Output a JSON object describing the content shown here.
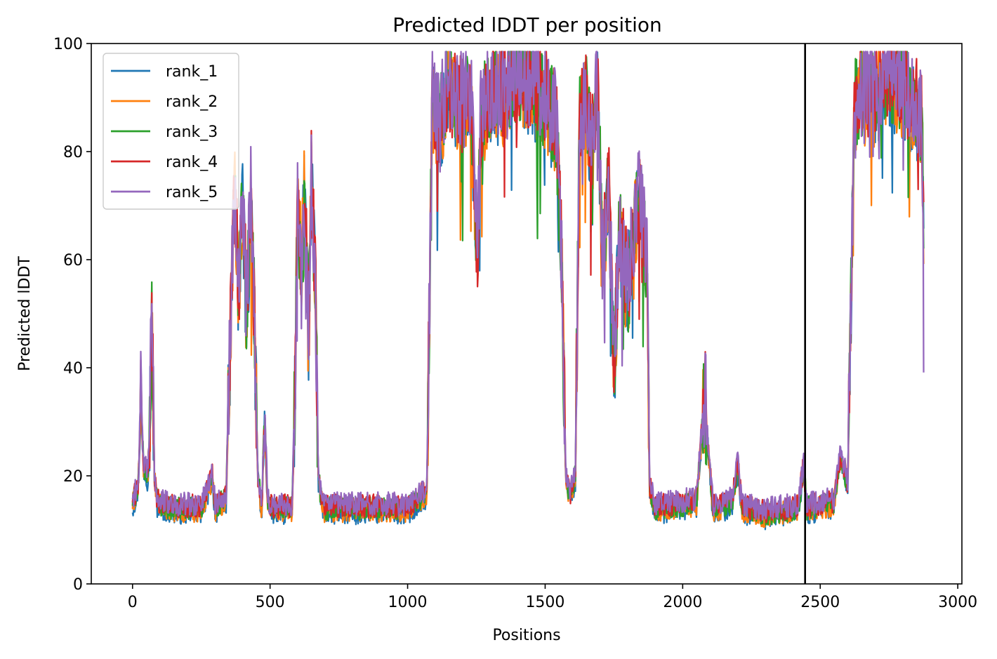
{
  "chart_data": {
    "type": "line",
    "title": "Predicted lDDT per position",
    "xlabel": "Positions",
    "ylabel": "Predicted lDDT",
    "xlim": [
      -150,
      3015
    ],
    "ylim": [
      0,
      100
    ],
    "xticks": [
      0,
      500,
      1000,
      1500,
      2000,
      2500,
      3000
    ],
    "yticks": [
      0,
      20,
      40,
      60,
      80,
      100
    ],
    "grid": false,
    "legend_position": "top-left",
    "vline": 2445,
    "series": [
      {
        "name": "rank_1",
        "color": "#1f77b4"
      },
      {
        "name": "rank_2",
        "color": "#ff7f0e"
      },
      {
        "name": "rank_3",
        "color": "#2ca02c"
      },
      {
        "name": "rank_4",
        "color": "#d62728"
      },
      {
        "name": "rank_5",
        "color": "#9467bd"
      }
    ],
    "base_profile": [
      [
        0,
        15
      ],
      [
        20,
        18
      ],
      [
        30,
        33
      ],
      [
        40,
        22
      ],
      [
        55,
        20
      ],
      [
        60,
        26
      ],
      [
        70,
        48
      ],
      [
        80,
        20
      ],
      [
        90,
        15
      ],
      [
        150,
        14
      ],
      [
        250,
        14
      ],
      [
        290,
        20
      ],
      [
        300,
        14
      ],
      [
        340,
        16
      ],
      [
        355,
        45
      ],
      [
        370,
        75
      ],
      [
        385,
        55
      ],
      [
        400,
        70
      ],
      [
        415,
        50
      ],
      [
        430,
        72
      ],
      [
        445,
        45
      ],
      [
        455,
        20
      ],
      [
        470,
        14
      ],
      [
        480,
        32
      ],
      [
        490,
        16
      ],
      [
        500,
        14
      ],
      [
        580,
        14
      ],
      [
        590,
        35
      ],
      [
        600,
        68
      ],
      [
        615,
        60
      ],
      [
        625,
        74
      ],
      [
        640,
        45
      ],
      [
        650,
        76
      ],
      [
        665,
        55
      ],
      [
        675,
        20
      ],
      [
        690,
        14
      ],
      [
        1000,
        14
      ],
      [
        1070,
        17
      ],
      [
        1090,
        90
      ],
      [
        1110,
        85
      ],
      [
        1150,
        92
      ],
      [
        1200,
        88
      ],
      [
        1230,
        90
      ],
      [
        1255,
        60
      ],
      [
        1265,
        85
      ],
      [
        1300,
        92
      ],
      [
        1350,
        90
      ],
      [
        1400,
        95
      ],
      [
        1450,
        92
      ],
      [
        1500,
        90
      ],
      [
        1540,
        85
      ],
      [
        1560,
        60
      ],
      [
        1575,
        20
      ],
      [
        1590,
        16
      ],
      [
        1610,
        20
      ],
      [
        1625,
        85
      ],
      [
        1650,
        90
      ],
      [
        1670,
        80
      ],
      [
        1690,
        92
      ],
      [
        1710,
        60
      ],
      [
        1730,
        75
      ],
      [
        1750,
        40
      ],
      [
        1770,
        65
      ],
      [
        1800,
        55
      ],
      [
        1840,
        72
      ],
      [
        1870,
        60
      ],
      [
        1880,
        18
      ],
      [
        1900,
        14
      ],
      [
        2050,
        15
      ],
      [
        2080,
        35
      ],
      [
        2100,
        20
      ],
      [
        2110,
        14
      ],
      [
        2180,
        15
      ],
      [
        2200,
        22
      ],
      [
        2215,
        14
      ],
      [
        2300,
        13
      ],
      [
        2420,
        14
      ],
      [
        2440,
        22
      ],
      [
        2450,
        14
      ],
      [
        2550,
        15
      ],
      [
        2575,
        24
      ],
      [
        2600,
        18
      ],
      [
        2610,
        50
      ],
      [
        2625,
        88
      ],
      [
        2650,
        92
      ],
      [
        2700,
        90
      ],
      [
        2750,
        94
      ],
      [
        2800,
        92
      ],
      [
        2850,
        88
      ],
      [
        2870,
        85
      ],
      [
        2877,
        60
      ]
    ]
  }
}
